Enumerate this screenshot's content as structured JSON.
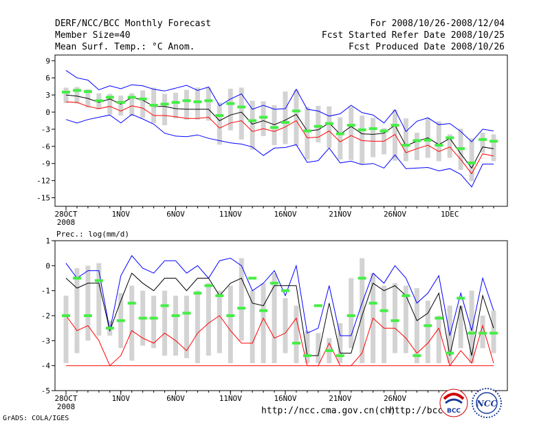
{
  "header": {
    "title": "DERF/NCC/BCC Monthly Forecast",
    "member_size": "Member Size=40",
    "variable": "Mean Surf. Temp.: °C Anom.",
    "period": "For 2008/10/26-2008/12/04",
    "started": "Fcst Started Refer Date 2008/10/25",
    "produced": "Fcst Produced Date 2008/10/26"
  },
  "footer": {
    "credit": "GrADS: COLA/IGES",
    "url1": "http://ncc.cma.gov.cn(ch)",
    "url2": "http://bcc.c",
    "logo1_text": "BCC",
    "logo2_text": "NCC"
  },
  "colors": {
    "max": "#0000ff",
    "min": "#ff0000",
    "mean": "#000000",
    "box": "#d3d3d3",
    "obs": "#44ee44"
  },
  "chart_data": [
    {
      "type": "line",
      "name": "temperature",
      "ylabel": "Mean Surf. Temp.: °C Anom.",
      "ylim": [
        -16.5,
        10
      ],
      "yticks": [
        -15,
        -12,
        -9,
        -6,
        -3,
        0,
        3,
        6,
        9
      ],
      "x_days": 40,
      "xticks": [
        {
          "day": 0,
          "label": "28OCT",
          "sub": "2008"
        },
        {
          "day": 5,
          "label": "1NOV"
        },
        {
          "day": 10,
          "label": "6NOV"
        },
        {
          "day": 15,
          "label": "11NOV"
        },
        {
          "day": 20,
          "label": "16NOV"
        },
        {
          "day": 25,
          "label": "21NOV"
        },
        {
          "day": 30,
          "label": "26NOV"
        },
        {
          "day": 35,
          "label": "1DEC"
        }
      ],
      "series": [
        {
          "name": "max",
          "values": [
            7.3,
            6.0,
            5.6,
            3.9,
            4.6,
            4.1,
            4.8,
            4.6,
            4.0,
            3.7,
            4.2,
            4.7,
            3.8,
            4.4,
            1.1,
            2.3,
            3.2,
            0.5,
            1.2,
            0.5,
            0.6,
            4.0,
            0.5,
            0.2,
            -0.7,
            -0.3,
            1.2,
            -0.1,
            -0.5,
            -1.9,
            0.4,
            -3.4,
            -1.6,
            -1.0,
            -2.2,
            -2.0,
            -3.4,
            -5.2,
            -3.0,
            -3.3
          ]
        },
        {
          "name": "mean",
          "values": [
            3.0,
            2.8,
            2.4,
            1.7,
            2.3,
            1.4,
            2.6,
            2.1,
            1.0,
            1.0,
            0.6,
            0.5,
            0.5,
            0.5,
            -1.5,
            -0.5,
            0.0,
            -2.1,
            -1.5,
            -2.2,
            -1.4,
            -0.4,
            -3.3,
            -3.1,
            -1.9,
            -3.9,
            -2.5,
            -3.8,
            -3.9,
            -3.7,
            -2.3,
            -5.9,
            -5.1,
            -4.5,
            -5.7,
            -4.6,
            -7.3,
            -9.8,
            -6.1,
            -6.4
          ]
        },
        {
          "name": "min",
          "values": [
            1.8,
            1.7,
            1.0,
            0.6,
            1.0,
            0.2,
            1.1,
            0.7,
            -0.6,
            -0.6,
            -0.8,
            -1.1,
            -1.1,
            -0.9,
            -2.8,
            -1.9,
            -1.5,
            -3.4,
            -2.9,
            -3.4,
            -2.6,
            -1.5,
            -4.5,
            -4.4,
            -3.3,
            -5.2,
            -4.1,
            -5.0,
            -5.1,
            -5.1,
            -3.9,
            -7.1,
            -6.4,
            -5.8,
            -6.9,
            -6.1,
            -8.3,
            -10.8,
            -7.3,
            -7.7
          ]
        },
        {
          "name": "min_member",
          "values": [
            -1.3,
            -1.9,
            -1.3,
            -0.9,
            -0.5,
            -1.9,
            -0.4,
            -1.2,
            -2.1,
            -3.7,
            -4.2,
            -4.3,
            -4.0,
            -4.6,
            -5.0,
            -5.4,
            -5.6,
            -6.1,
            -7.6,
            -6.3,
            -6.2,
            -5.7,
            -8.8,
            -8.5,
            -6.3,
            -8.9,
            -8.6,
            -9.2,
            -9.0,
            -9.8,
            -7.5,
            -9.9,
            -9.8,
            -9.7,
            -10.3,
            -9.9,
            -10.9,
            -13.1,
            -9.1,
            -9.1
          ]
        },
        {
          "name": "observed",
          "values": [
            3.5,
            3.8,
            3.6,
            2.0,
            2.6,
            1.7,
            2.6,
            2.3,
            1.2,
            1.4,
            1.7,
            2.0,
            1.8,
            2.0,
            -0.6,
            1.5,
            0.9,
            -1.5,
            -0.9,
            -2.7,
            -1.8,
            0.2,
            -3.3,
            -2.5,
            -2.0,
            -3.8,
            -2.3,
            -3.1,
            -2.9,
            -3.3,
            -2.3,
            -5.8,
            -5.0,
            -4.9,
            -5.8,
            -4.5,
            -6.4,
            -8.9,
            -4.8,
            -5.1
          ]
        },
        {
          "name": "box_top",
          "values": [
            4.3,
            4.4,
            4.0,
            3.3,
            3.2,
            2.9,
            3.3,
            3.8,
            4.3,
            3.2,
            3.4,
            3.9,
            4.3,
            4.3,
            1.7,
            4.1,
            4.3,
            2.0,
            1.9,
            1.2,
            3.6,
            3.9,
            0.9,
            1.1,
            1.0,
            -0.9,
            0.9,
            -0.6,
            -1.0,
            -2.8,
            0.4,
            -1.1,
            -3.6,
            -1.0,
            -1.6,
            -3.9,
            -2.9,
            -4.6,
            -3.6,
            -3.9
          ]
        },
        {
          "name": "box_bottom",
          "values": [
            1.6,
            1.5,
            0.8,
            0.5,
            -0.4,
            -0.6,
            -0.7,
            -1.0,
            -1.9,
            -2.3,
            -1.1,
            -1.3,
            -1.3,
            -1.5,
            -5.7,
            -3.2,
            -4.8,
            -6.6,
            -4.2,
            -5.8,
            -5.6,
            -5.9,
            -8.3,
            -5.3,
            -6.3,
            -8.3,
            -8.4,
            -9.2,
            -7.9,
            -7.4,
            -8.5,
            -8.6,
            -8.4,
            -8.0,
            -8.6,
            -8.0,
            -10.1,
            -12.1,
            -7.1,
            -8.6
          ]
        }
      ]
    },
    {
      "type": "line",
      "name": "precipitation",
      "ylabel": "Prec.: log(mm/d)",
      "ylim": [
        -5,
        1
      ],
      "yticks": [
        -5,
        -4,
        -3,
        -2,
        -1,
        0,
        1
      ],
      "x_days": 40,
      "xticks": [
        {
          "day": 0,
          "label": "28OCT",
          "sub": "2008"
        },
        {
          "day": 5,
          "label": "1NOV"
        },
        {
          "day": 10,
          "label": "6NOV"
        },
        {
          "day": 15,
          "label": "11NOV"
        },
        {
          "day": 20,
          "label": "16NOV"
        },
        {
          "day": 25,
          "label": "21NOV"
        },
        {
          "day": 30,
          "label": "26NOV"
        },
        {
          "day": 35,
          "label": "1DEC"
        }
      ],
      "series": [
        {
          "name": "max",
          "values": [
            0.1,
            -0.5,
            -0.2,
            -0.2,
            -2.6,
            -0.4,
            0.4,
            -0.1,
            -0.3,
            0.2,
            0.2,
            -0.3,
            0.0,
            -0.5,
            0.2,
            0.3,
            0.0,
            -1.0,
            -0.7,
            -0.2,
            -1.2,
            0.0,
            -2.7,
            -2.5,
            -0.8,
            -2.8,
            -2.8,
            -1.5,
            -0.3,
            -0.7,
            0.0,
            -0.5,
            -1.5,
            -1.1,
            -0.4,
            -2.8,
            -1.1,
            -2.6,
            -0.5,
            -1.8
          ]
        },
        {
          "name": "mean",
          "values": [
            -0.5,
            -0.9,
            -0.7,
            -0.7,
            -2.6,
            -1.4,
            -0.3,
            -0.7,
            -1.0,
            -0.5,
            -0.5,
            -1.0,
            -0.5,
            -0.5,
            -1.2,
            -0.7,
            -0.5,
            -1.5,
            -1.6,
            -0.8,
            -0.8,
            -0.8,
            -3.6,
            -3.6,
            -1.5,
            -3.5,
            -3.5,
            -2.0,
            -0.7,
            -1.0,
            -0.8,
            -1.2,
            -2.2,
            -1.9,
            -1.1,
            -3.6,
            -1.6,
            -3.6,
            -1.2,
            -2.5
          ]
        },
        {
          "name": "min",
          "values": [
            -2.0,
            -2.6,
            -2.4,
            -3.0,
            -4.0,
            -3.6,
            -2.6,
            -2.9,
            -3.1,
            -2.7,
            -3.0,
            -3.4,
            -2.7,
            -2.3,
            -2.0,
            -2.6,
            -3.1,
            -3.1,
            -2.1,
            -2.9,
            -2.7,
            -2.1,
            -4.0,
            -4.0,
            -3.1,
            -4.0,
            -4.0,
            -3.5,
            -2.1,
            -2.5,
            -2.5,
            -2.9,
            -3.5,
            -3.1,
            -2.5,
            -4.0,
            -3.4,
            -3.9,
            -2.4,
            -3.9
          ]
        },
        {
          "name": "floor",
          "values": [
            -4.0,
            -4.0,
            -4.0,
            -4.0,
            -4.0,
            -4.0,
            -4.0,
            -4.0,
            -4.0,
            -4.0,
            -4.0,
            -4.0,
            -4.0,
            -4.0,
            -4.0,
            -4.0,
            -4.0,
            -4.0,
            -4.0,
            -4.0,
            -4.0,
            -4.0,
            -4.0,
            -4.0,
            -4.0,
            -4.0,
            -4.0,
            -4.0,
            -4.0,
            -4.0,
            -4.0,
            -4.0,
            -4.0,
            -4.0,
            -4.0,
            -4.0,
            -4.0,
            -4.0,
            -4.0,
            -4.0
          ]
        },
        {
          "name": "observed",
          "values": [
            -2.0,
            -0.5,
            -2.0,
            -0.6,
            -2.5,
            -2.2,
            -1.5,
            -2.1,
            -2.1,
            -1.6,
            -2.0,
            -1.9,
            -1.1,
            -0.8,
            -1.2,
            -2.0,
            -1.7,
            -0.5,
            -1.8,
            -0.7,
            -1.0,
            -3.1,
            -3.6,
            -1.6,
            -3.4,
            -3.6,
            -2.0,
            -0.5,
            -1.5,
            -1.8,
            -2.2,
            -1.2,
            -3.6,
            -2.4,
            -2.1,
            -3.5,
            -1.3,
            -2.7,
            -2.7,
            -2.7
          ]
        },
        {
          "name": "box_top",
          "values": [
            -1.2,
            -0.1,
            0.0,
            0.1,
            -2.2,
            -1.1,
            -0.8,
            -1.0,
            -1.2,
            -1.0,
            -1.2,
            -1.2,
            -1.0,
            -0.7,
            -1.0,
            -0.8,
            0.3,
            -1.0,
            -0.7,
            -0.3,
            -1.3,
            -1.6,
            -2.6,
            -2.7,
            -2.9,
            -2.3,
            -0.5,
            0.3,
            -0.3,
            -0.8,
            -0.7,
            -0.8,
            -0.9,
            -1.4,
            -2.0,
            -1.6,
            -1.6,
            -1.0,
            -2.0,
            -1.8
          ]
        },
        {
          "name": "box_bottom",
          "values": [
            -3.9,
            -3.5,
            -3.0,
            -2.8,
            -2.8,
            -3.3,
            -3.8,
            -3.2,
            -3.3,
            -3.6,
            -3.6,
            -3.7,
            -3.9,
            -3.6,
            -3.5,
            -3.9,
            -3.0,
            -3.9,
            -3.9,
            -3.9,
            -3.5,
            -3.9,
            -3.9,
            -3.9,
            -3.9,
            -3.9,
            -3.3,
            -3.9,
            -3.9,
            -3.9,
            -3.5,
            -3.5,
            -3.9,
            -3.9,
            -3.9,
            -3.9,
            -3.3,
            -3.9,
            -3.3,
            -3.5
          ]
        }
      ]
    }
  ]
}
